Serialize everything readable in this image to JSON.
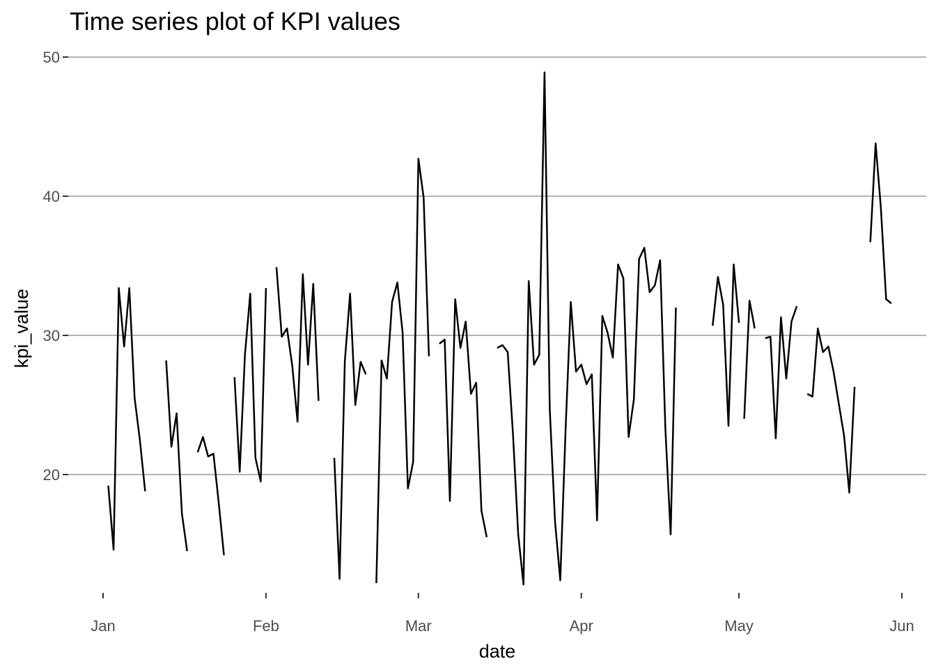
{
  "chart_data": {
    "type": "line",
    "title": "Time series plot of KPI values",
    "xlabel": "date",
    "ylabel": "kpi_value",
    "xlim": [
      "2024-01-01",
      "2024-06-01"
    ],
    "ylim": [
      11,
      50
    ],
    "y_ticks": [
      20,
      30,
      40,
      50
    ],
    "x_ticks": [
      {
        "date": "2024-01-01",
        "label": "Jan"
      },
      {
        "date": "2024-02-01",
        "label": "Feb"
      },
      {
        "date": "2024-03-01",
        "label": "Mar"
      },
      {
        "date": "2024-04-01",
        "label": "Apr"
      },
      {
        "date": "2024-05-01",
        "label": "May"
      },
      {
        "date": "2024-06-01",
        "label": "Jun"
      }
    ],
    "grid": "horizontal major only",
    "series_color": "#000000",
    "segments": [
      [
        [
          "2024-01-02",
          19.2
        ],
        [
          "2024-01-03",
          14.6
        ],
        [
          "2024-01-04",
          33.4
        ],
        [
          "2024-01-05",
          29.2
        ],
        [
          "2024-01-06",
          33.4
        ],
        [
          "2024-01-07",
          25.5
        ],
        [
          "2024-01-08",
          22.5
        ],
        [
          "2024-01-09",
          18.8
        ]
      ],
      [
        [
          "2024-01-13",
          28.2
        ],
        [
          "2024-01-14",
          22.0
        ],
        [
          "2024-01-15",
          24.4
        ],
        [
          "2024-01-16",
          17.2
        ],
        [
          "2024-01-17",
          14.5
        ]
      ],
      [
        [
          "2024-01-19",
          21.6
        ],
        [
          "2024-01-20",
          22.7
        ],
        [
          "2024-01-21",
          21.3
        ],
        [
          "2024-01-22",
          21.5
        ],
        [
          "2024-01-23",
          18.0
        ],
        [
          "2024-01-24",
          14.2
        ]
      ],
      [
        [
          "2024-01-26",
          27.0
        ],
        [
          "2024-01-27",
          20.2
        ],
        [
          "2024-01-28",
          28.6
        ],
        [
          "2024-01-29",
          33.0
        ],
        [
          "2024-01-30",
          21.2
        ],
        [
          "2024-01-31",
          19.5
        ],
        [
          "2024-02-01",
          33.4
        ]
      ],
      [
        [
          "2024-02-03",
          34.9
        ],
        [
          "2024-02-04",
          29.9
        ],
        [
          "2024-02-05",
          30.5
        ],
        [
          "2024-02-06",
          27.8
        ],
        [
          "2024-02-07",
          23.8
        ],
        [
          "2024-02-08",
          34.4
        ],
        [
          "2024-02-09",
          27.9
        ],
        [
          "2024-02-10",
          33.7
        ],
        [
          "2024-02-11",
          25.3
        ]
      ],
      [
        [
          "2024-02-14",
          21.2
        ],
        [
          "2024-02-15",
          12.5
        ],
        [
          "2024-02-16",
          28.1
        ],
        [
          "2024-02-17",
          33.0
        ],
        [
          "2024-02-18",
          25.0
        ],
        [
          "2024-02-19",
          28.1
        ],
        [
          "2024-02-20",
          27.2
        ]
      ],
      [
        [
          "2024-02-22",
          12.2
        ],
        [
          "2024-02-23",
          28.2
        ],
        [
          "2024-02-24",
          26.9
        ],
        [
          "2024-02-25",
          32.4
        ],
        [
          "2024-02-26",
          33.8
        ],
        [
          "2024-02-27",
          30.2
        ],
        [
          "2024-02-28",
          19.0
        ],
        [
          "2024-02-29",
          20.9
        ],
        [
          "2024-03-01",
          42.7
        ],
        [
          "2024-03-02",
          39.9
        ],
        [
          "2024-03-03",
          28.5
        ]
      ],
      [
        [
          "2024-03-05",
          29.4
        ],
        [
          "2024-03-06",
          29.7
        ],
        [
          "2024-03-07",
          18.1
        ],
        [
          "2024-03-08",
          32.6
        ],
        [
          "2024-03-09",
          29.1
        ],
        [
          "2024-03-10",
          31.0
        ],
        [
          "2024-03-11",
          25.8
        ],
        [
          "2024-03-12",
          26.6
        ],
        [
          "2024-03-13",
          17.4
        ],
        [
          "2024-03-14",
          15.5
        ]
      ],
      [
        [
          "2024-03-16",
          29.1
        ],
        [
          "2024-03-17",
          29.3
        ],
        [
          "2024-03-18",
          28.8
        ],
        [
          "2024-03-19",
          22.9
        ],
        [
          "2024-03-20",
          15.7
        ],
        [
          "2024-03-21",
          12.1
        ],
        [
          "2024-03-22",
          33.9
        ],
        [
          "2024-03-23",
          27.9
        ],
        [
          "2024-03-24",
          28.6
        ],
        [
          "2024-03-25",
          48.9
        ],
        [
          "2024-03-26",
          24.7
        ],
        [
          "2024-03-27",
          16.6
        ],
        [
          "2024-03-28",
          12.4
        ],
        [
          "2024-03-29",
          23.2
        ],
        [
          "2024-03-30",
          32.4
        ],
        [
          "2024-03-31",
          27.4
        ],
        [
          "2024-04-01",
          27.9
        ],
        [
          "2024-04-02",
          26.5
        ],
        [
          "2024-04-03",
          27.2
        ],
        [
          "2024-04-04",
          16.7
        ],
        [
          "2024-04-05",
          31.4
        ],
        [
          "2024-04-06",
          30.2
        ],
        [
          "2024-04-07",
          28.4
        ],
        [
          "2024-04-08",
          35.1
        ],
        [
          "2024-04-09",
          34.1
        ],
        [
          "2024-04-10",
          22.7
        ],
        [
          "2024-04-11",
          25.4
        ],
        [
          "2024-04-12",
          35.5
        ],
        [
          "2024-04-13",
          36.3
        ],
        [
          "2024-04-14",
          33.1
        ],
        [
          "2024-04-15",
          33.6
        ],
        [
          "2024-04-16",
          35.4
        ],
        [
          "2024-04-17",
          23.3
        ],
        [
          "2024-04-18",
          15.7
        ],
        [
          "2024-04-19",
          32.0
        ]
      ],
      [
        [
          "2024-04-26",
          30.7
        ],
        [
          "2024-04-27",
          34.2
        ],
        [
          "2024-04-28",
          32.2
        ],
        [
          "2024-04-29",
          23.5
        ],
        [
          "2024-04-30",
          35.1
        ],
        [
          "2024-05-01",
          30.9
        ]
      ],
      [
        [
          "2024-05-02",
          24.0
        ],
        [
          "2024-05-03",
          32.5
        ],
        [
          "2024-05-04",
          30.5
        ]
      ],
      [
        [
          "2024-05-06",
          29.8
        ],
        [
          "2024-05-07",
          29.9
        ],
        [
          "2024-05-08",
          22.6
        ],
        [
          "2024-05-09",
          31.3
        ],
        [
          "2024-05-10",
          26.9
        ],
        [
          "2024-05-11",
          31.0
        ],
        [
          "2024-05-12",
          32.1
        ]
      ],
      [
        [
          "2024-05-14",
          25.8
        ],
        [
          "2024-05-15",
          25.6
        ],
        [
          "2024-05-16",
          30.5
        ],
        [
          "2024-05-17",
          28.8
        ],
        [
          "2024-05-18",
          29.2
        ],
        [
          "2024-05-19",
          27.4
        ],
        [
          "2024-05-20",
          25.1
        ],
        [
          "2024-05-21",
          22.8
        ],
        [
          "2024-05-22",
          18.7
        ],
        [
          "2024-05-23",
          26.3
        ]
      ],
      [
        [
          "2024-05-26",
          36.7
        ],
        [
          "2024-05-27",
          43.8
        ],
        [
          "2024-05-28",
          39.2
        ],
        [
          "2024-05-29",
          32.6
        ],
        [
          "2024-05-30",
          32.3
        ]
      ]
    ]
  }
}
